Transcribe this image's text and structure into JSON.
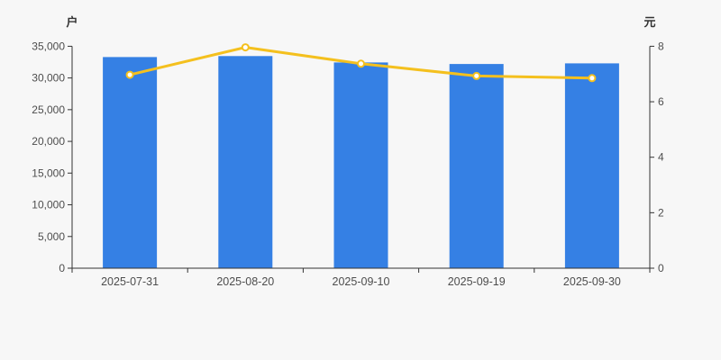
{
  "chart_data": {
    "type": "bar",
    "title": "",
    "categories": [
      "2025-07-31",
      "2025-08-20",
      "2025-09-10",
      "2025-09-19",
      "2025-09-30"
    ],
    "series": [
      {
        "type": "bar",
        "y_axis": "left",
        "values": [
          33300,
          33450,
          32450,
          32200,
          32300
        ],
        "color": "#3580e4"
      },
      {
        "type": "line",
        "y_axis": "right",
        "values": [
          6.97,
          7.96,
          7.37,
          6.93,
          6.85
        ],
        "color": "#f4c01e",
        "marker": "hollow-circle",
        "marker_fill": "#ffffff"
      }
    ],
    "left_axis": {
      "unit": "户",
      "min": 0,
      "max": 35000,
      "step": 5000,
      "tick_labels": [
        "0",
        "5,000",
        "10,000",
        "15,000",
        "20,000",
        "25,000",
        "30,000",
        "35,000"
      ]
    },
    "right_axis": {
      "unit": "元",
      "min": 0,
      "max": 8,
      "step": 2,
      "tick_labels": [
        "0",
        "2",
        "4",
        "6",
        "8"
      ]
    },
    "grid_lines": false,
    "legend_position": "none"
  },
  "style": {
    "background": "#f7f7f7",
    "axis_color": "#333333",
    "tick_label_color": "#4d4d4d",
    "axis_unit_color": "#333333"
  }
}
